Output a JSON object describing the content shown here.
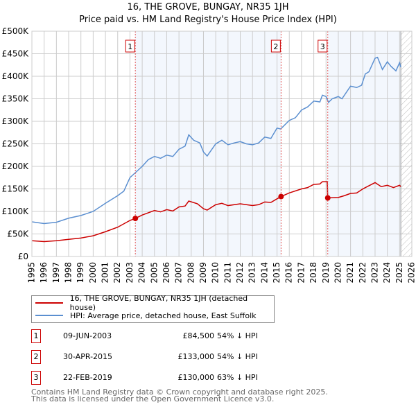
{
  "chart_data": {
    "type": "line",
    "title": "16, THE GROVE, BUNGAY, NR35 1JH",
    "subtitle": "Price paid vs. HM Land Registry's House Price Index (HPI)",
    "xlim": [
      1995,
      2026
    ],
    "ylim": [
      0,
      500000
    ],
    "x_ticks": [
      "1995",
      "1996",
      "1997",
      "1998",
      "1999",
      "2000",
      "2001",
      "2002",
      "2003",
      "2004",
      "2005",
      "2006",
      "2007",
      "2008",
      "2009",
      "2010",
      "2011",
      "2012",
      "2013",
      "2014",
      "2015",
      "2016",
      "2017",
      "2018",
      "2019",
      "2020",
      "2021",
      "2022",
      "2023",
      "2024",
      "2025",
      "2026"
    ],
    "y_ticks": [
      {
        "v": 0,
        "l": "£0"
      },
      {
        "v": 50000,
        "l": "£50K"
      },
      {
        "v": 100000,
        "l": "£100K"
      },
      {
        "v": 150000,
        "l": "£150K"
      },
      {
        "v": 200000,
        "l": "£200K"
      },
      {
        "v": 250000,
        "l": "£250K"
      },
      {
        "v": 300000,
        "l": "£300K"
      },
      {
        "v": 350000,
        "l": "£350K"
      },
      {
        "v": 400000,
        "l": "£400K"
      },
      {
        "v": 450000,
        "l": "£450K"
      },
      {
        "v": 500000,
        "l": "£500K"
      }
    ],
    "grid": true,
    "hatched_from": 2025.1,
    "series": [
      {
        "name": "16, THE GROVE, BUNGAY, NR35 1JH (detached house)",
        "color": "#cc0000",
        "points": [
          [
            1995,
            35
          ],
          [
            1996,
            33
          ],
          [
            1997,
            35
          ],
          [
            1998,
            38
          ],
          [
            1999,
            41
          ],
          [
            2000,
            46
          ],
          [
            2001,
            55
          ],
          [
            2002,
            65
          ],
          [
            2003,
            80
          ],
          [
            2003.44,
            84.5
          ],
          [
            2004,
            92
          ],
          [
            2005,
            102
          ],
          [
            2005.5,
            99
          ],
          [
            2006,
            104
          ],
          [
            2006.5,
            101
          ],
          [
            2007,
            110
          ],
          [
            2007.5,
            112
          ],
          [
            2007.8,
            123
          ],
          [
            2008.5,
            117
          ],
          [
            2009,
            106
          ],
          [
            2009.3,
            103
          ],
          [
            2010,
            115
          ],
          [
            2010.5,
            118
          ],
          [
            2011,
            113
          ],
          [
            2012,
            117
          ],
          [
            2012.5,
            115
          ],
          [
            2013,
            113
          ],
          [
            2013.5,
            115
          ],
          [
            2014,
            121
          ],
          [
            2014.5,
            120
          ],
          [
            2015,
            128
          ],
          [
            2015.33,
            133
          ],
          [
            2016,
            141
          ],
          [
            2017,
            150
          ],
          [
            2017.5,
            153
          ],
          [
            2018,
            160
          ],
          [
            2018.5,
            161
          ],
          [
            2018.7,
            166
          ],
          [
            2019.1,
            166
          ],
          [
            2019.14,
            130
          ],
          [
            2020,
            131
          ],
          [
            2020.5,
            135
          ],
          [
            2021,
            140
          ],
          [
            2021.5,
            141
          ],
          [
            2022,
            150
          ],
          [
            2023,
            164
          ],
          [
            2023.5,
            155
          ],
          [
            2024,
            158
          ],
          [
            2024.5,
            153
          ],
          [
            2025,
            158
          ],
          [
            2025.1,
            155
          ]
        ]
      },
      {
        "name": "HPI: Average price, detached house, East Suffolk",
        "color": "#5b8fd0",
        "points": [
          [
            1995,
            77
          ],
          [
            1996,
            73
          ],
          [
            1997,
            76
          ],
          [
            1998,
            85
          ],
          [
            1999,
            91
          ],
          [
            2000,
            100
          ],
          [
            2001,
            118
          ],
          [
            2002,
            135
          ],
          [
            2002.5,
            145
          ],
          [
            2003,
            175
          ],
          [
            2003.4,
            185
          ],
          [
            2004,
            200
          ],
          [
            2004.5,
            215
          ],
          [
            2005,
            222
          ],
          [
            2005.5,
            218
          ],
          [
            2006,
            225
          ],
          [
            2006.5,
            222
          ],
          [
            2007,
            238
          ],
          [
            2007.5,
            245
          ],
          [
            2007.8,
            270
          ],
          [
            2008.2,
            258
          ],
          [
            2008.7,
            252
          ],
          [
            2009,
            232
          ],
          [
            2009.3,
            223
          ],
          [
            2010,
            250
          ],
          [
            2010.5,
            258
          ],
          [
            2011,
            248
          ],
          [
            2011.5,
            252
          ],
          [
            2012,
            255
          ],
          [
            2012.5,
            250
          ],
          [
            2013,
            248
          ],
          [
            2013.5,
            252
          ],
          [
            2014,
            265
          ],
          [
            2014.5,
            262
          ],
          [
            2015,
            285
          ],
          [
            2015.3,
            283
          ],
          [
            2016,
            302
          ],
          [
            2016.5,
            308
          ],
          [
            2017,
            325
          ],
          [
            2017.5,
            332
          ],
          [
            2018,
            345
          ],
          [
            2018.5,
            343
          ],
          [
            2018.7,
            358
          ],
          [
            2019,
            355
          ],
          [
            2019.2,
            342
          ],
          [
            2019.5,
            350
          ],
          [
            2020,
            355
          ],
          [
            2020.3,
            350
          ],
          [
            2021,
            378
          ],
          [
            2021.5,
            375
          ],
          [
            2021.9,
            380
          ],
          [
            2022.2,
            405
          ],
          [
            2022.5,
            410
          ],
          [
            2023,
            440
          ],
          [
            2023.2,
            442
          ],
          [
            2023.6,
            415
          ],
          [
            2024,
            432
          ],
          [
            2024.3,
            422
          ],
          [
            2024.7,
            412
          ],
          [
            2025,
            430
          ],
          [
            2025.1,
            420
          ]
        ]
      }
    ],
    "sales": [
      {
        "label": "1",
        "x": 2003.44,
        "value": 84500,
        "date": "09-JUN-2003",
        "price": "£84,500",
        "hpi": "54% ↓ HPI"
      },
      {
        "label": "2",
        "x": 2015.33,
        "value": 133000,
        "date": "30-APR-2015",
        "price": "£133,000",
        "hpi": "54% ↓ HPI"
      },
      {
        "label": "3",
        "x": 2019.14,
        "value": 130000,
        "date": "22-FEB-2019",
        "price": "£130,000",
        "hpi": "63% ↓ HPI"
      }
    ]
  },
  "footer": {
    "line1": "Contains HM Land Registry data © Crown copyright and database right 2025.",
    "line2": "This data is licensed under the Open Government Licence v3.0."
  }
}
